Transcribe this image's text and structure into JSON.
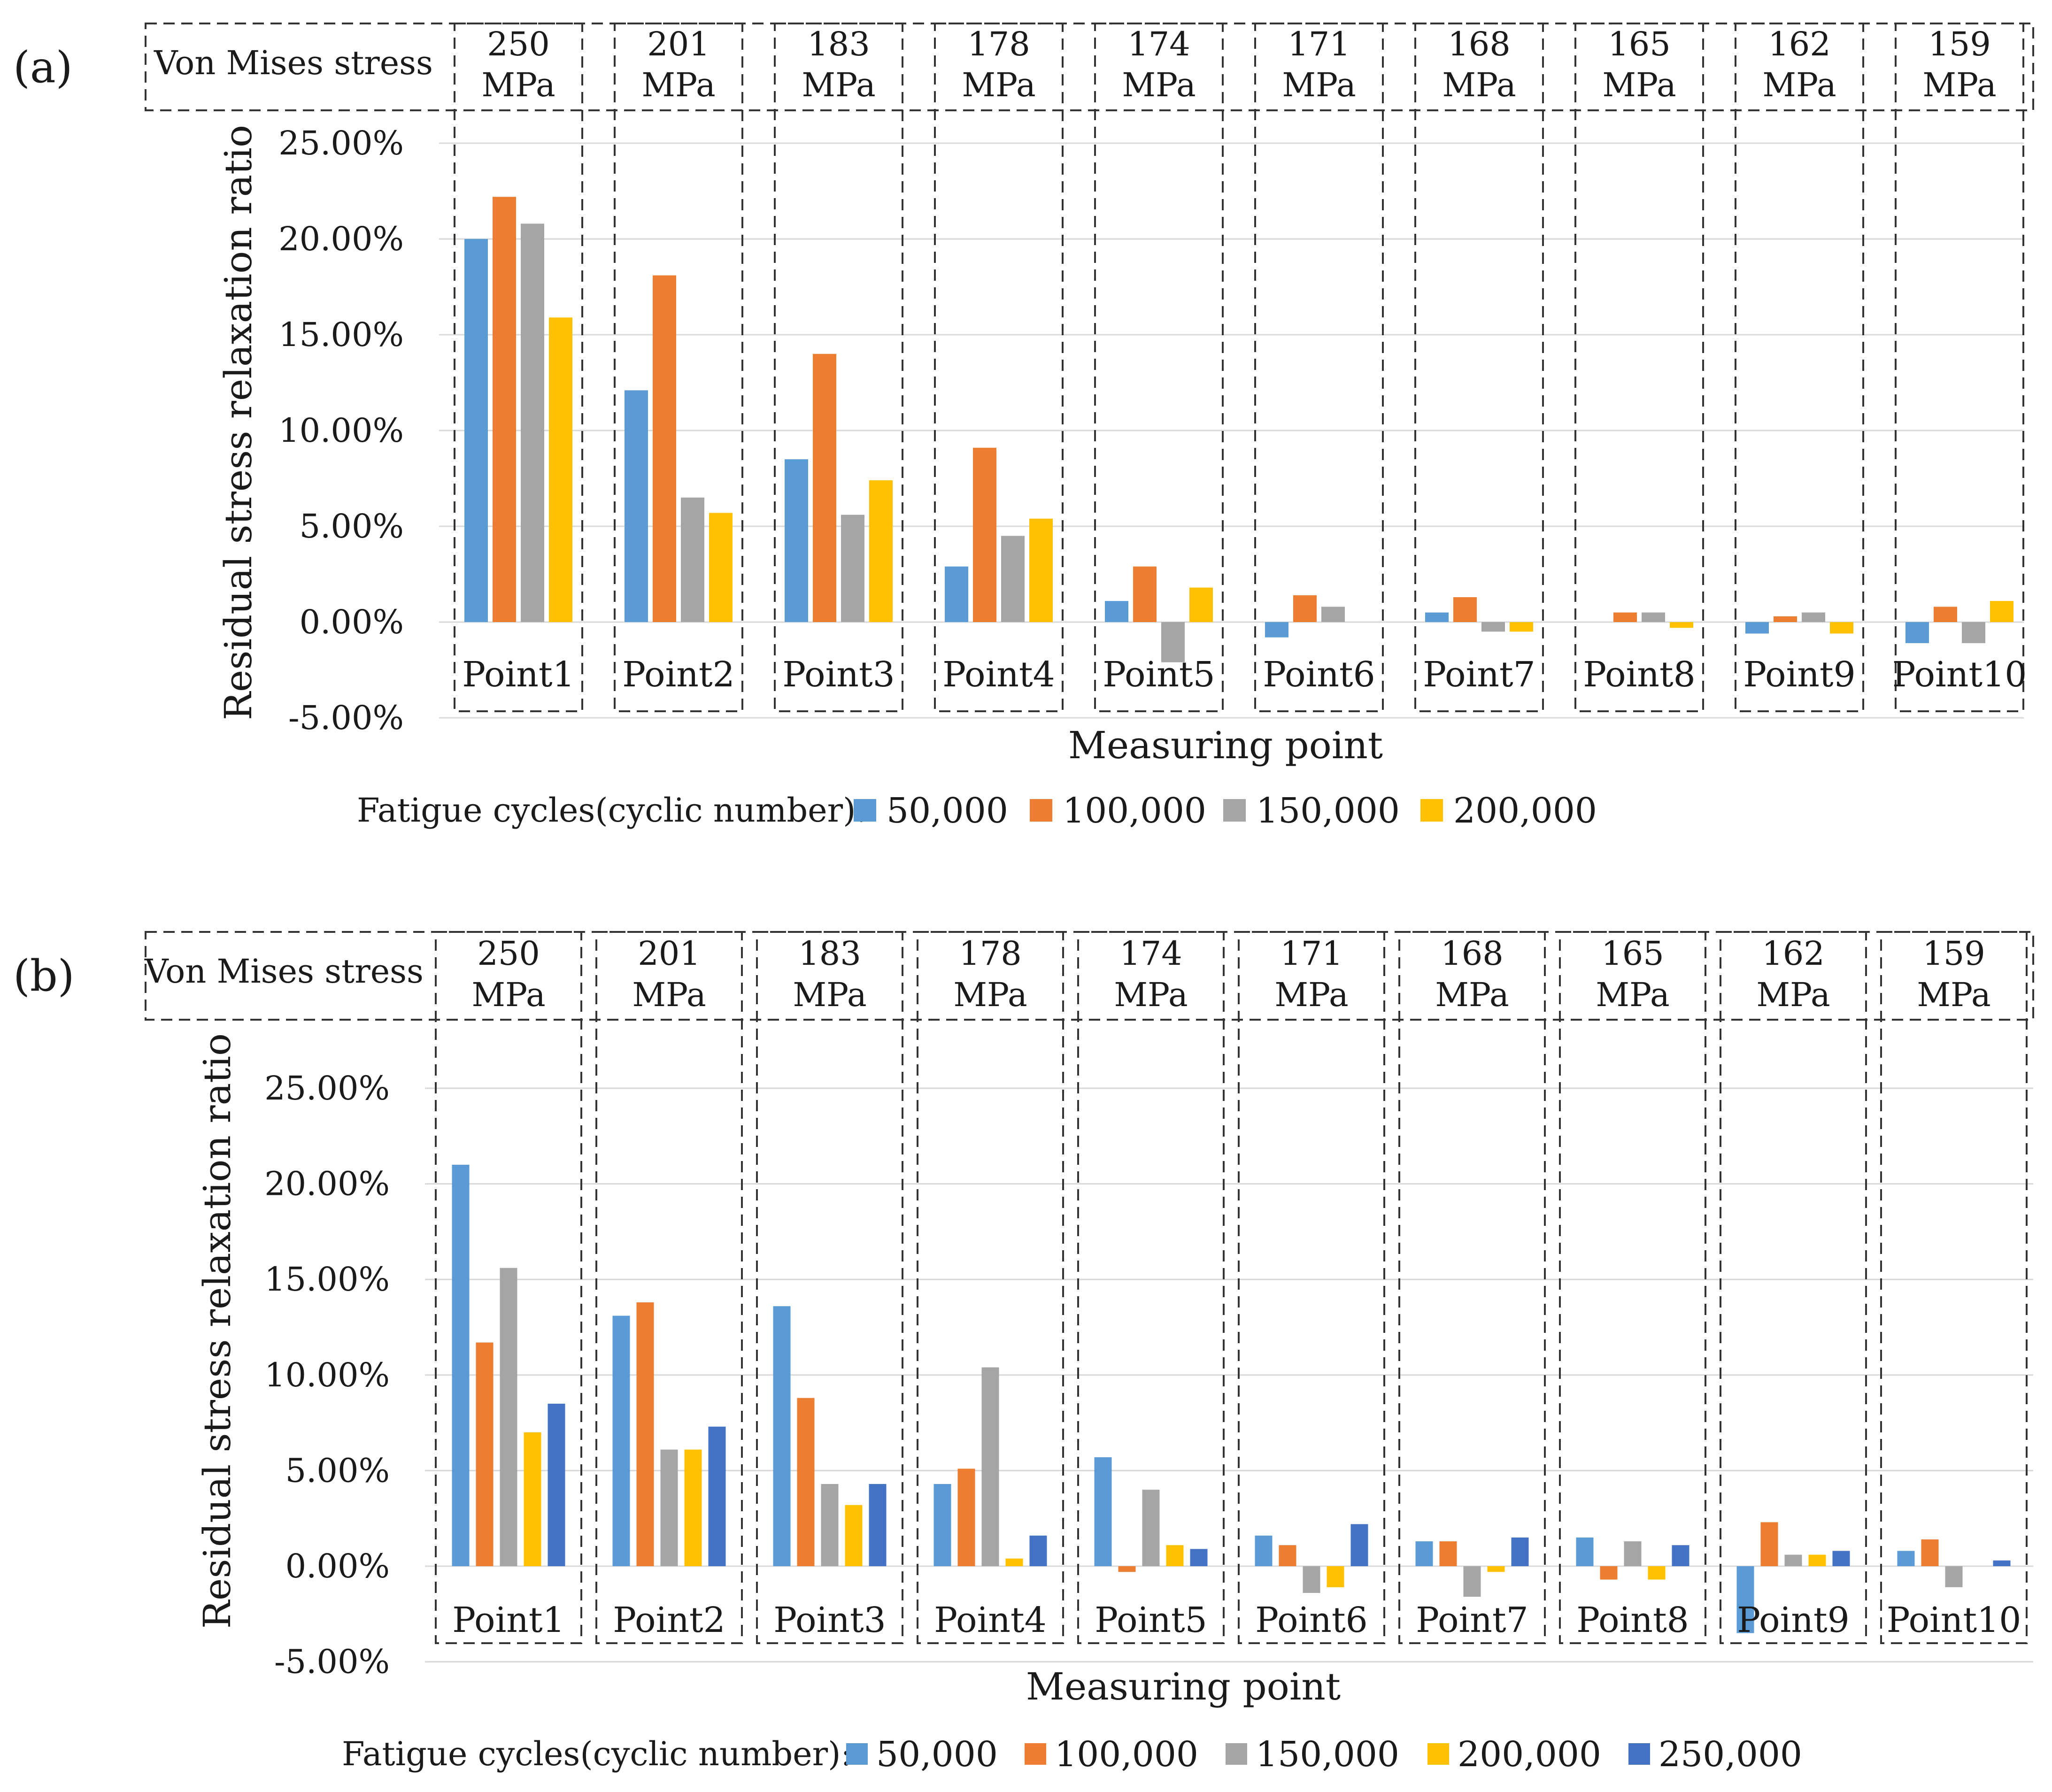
{
  "chart_data": [
    {
      "type": "bar",
      "panel_label": "(a)",
      "header_label": "Von Mises stress",
      "stresses": [
        "250",
        "201",
        "183",
        "178",
        "174",
        "171",
        "168",
        "165",
        "162",
        "159"
      ],
      "stress_unit": "MPa",
      "categories": [
        "Point1",
        "Point2",
        "Point3",
        "Point4",
        "Point5",
        "Point6",
        "Point7",
        "Point8",
        "Point9",
        "Point10"
      ],
      "xlabel": "Measuring point",
      "ylabel": "Residual stress relaxation ratio",
      "yticks": [
        "25.00%",
        "20.00%",
        "15.00%",
        "10.00%",
        "5.00%",
        "0.00%",
        "-5.00%"
      ],
      "ylim": [
        -5,
        25
      ],
      "legend_title": "Fatigue cycles(cyclic number):",
      "legend_position": "bottom",
      "grid": true,
      "series": [
        {
          "name": "50,000",
          "color": "#5b9bd5",
          "values": [
            20.0,
            12.1,
            8.5,
            2.9,
            1.1,
            -0.8,
            0.5,
            0.0,
            -0.6,
            -1.1
          ]
        },
        {
          "name": "100,000",
          "color": "#ed7d31",
          "values": [
            22.2,
            18.1,
            14.0,
            9.1,
            2.9,
            1.4,
            1.3,
            0.5,
            0.3,
            0.8
          ]
        },
        {
          "name": "150,000",
          "color": "#a5a5a5",
          "values": [
            20.8,
            6.5,
            5.6,
            4.5,
            -2.1,
            0.8,
            -0.5,
            0.5,
            0.5,
            -1.1
          ]
        },
        {
          "name": "200,000",
          "color": "#ffc000",
          "values": [
            15.9,
            5.7,
            7.4,
            5.4,
            1.8,
            0.0,
            -0.5,
            -0.3,
            -0.6,
            1.1
          ]
        }
      ]
    },
    {
      "type": "bar",
      "panel_label": "(b)",
      "header_label": "Von Mises stress",
      "stresses": [
        "250",
        "201",
        "183",
        "178",
        "174",
        "171",
        "168",
        "165",
        "162",
        "159"
      ],
      "stress_unit": "MPa",
      "categories": [
        "Point1",
        "Point2",
        "Point3",
        "Point4",
        "Point5",
        "Point6",
        "Point7",
        "Point8",
        "Point9",
        "Point10"
      ],
      "xlabel": "Measuring point",
      "ylabel": "Residual stress relaxation ratio",
      "yticks": [
        "25.00%",
        "20.00%",
        "15.00%",
        "10.00%",
        "5.00%",
        "0.00%",
        "-5.00%"
      ],
      "ylim": [
        -5,
        25
      ],
      "legend_title": "Fatigue cycles(cyclic number):",
      "legend_position": "bottom",
      "grid": true,
      "series": [
        {
          "name": "50,000",
          "color": "#5b9bd5",
          "values": [
            21.0,
            13.1,
            13.6,
            4.3,
            5.7,
            1.6,
            1.3,
            1.5,
            -3.5,
            0.8
          ]
        },
        {
          "name": "100,000",
          "color": "#ed7d31",
          "values": [
            11.7,
            13.8,
            8.8,
            5.1,
            -0.3,
            1.1,
            1.3,
            -0.7,
            2.3,
            1.4
          ]
        },
        {
          "name": "150,000",
          "color": "#a5a5a5",
          "values": [
            15.6,
            6.1,
            4.3,
            10.4,
            4.0,
            -1.4,
            -1.6,
            1.3,
            0.6,
            -1.1
          ]
        },
        {
          "name": "200,000",
          "color": "#ffc000",
          "values": [
            7.0,
            6.1,
            3.2,
            0.4,
            1.1,
            -1.1,
            -0.3,
            -0.7,
            0.6,
            0.0
          ]
        },
        {
          "name": "250,000",
          "color": "#4472c4",
          "values": [
            8.5,
            7.3,
            4.3,
            1.6,
            0.9,
            2.2,
            1.5,
            1.1,
            0.8,
            0.3
          ]
        }
      ]
    }
  ]
}
